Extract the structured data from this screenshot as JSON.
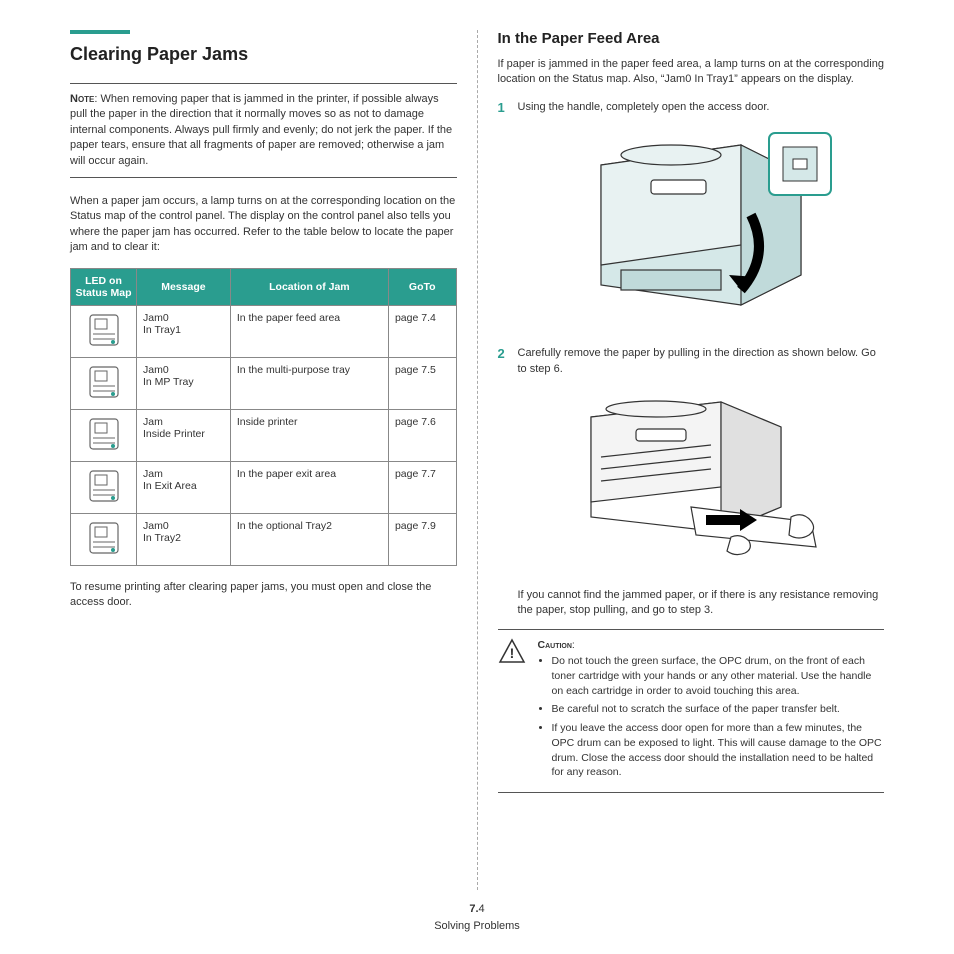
{
  "colors": {
    "accent": "#2a9d8f",
    "text": "#333333",
    "border": "#555555",
    "table_border": "#888888",
    "illustration_fill": "#d5e8e8",
    "illustration_stroke": "#333333"
  },
  "left": {
    "title": "Clearing Paper Jams",
    "note_label": "Note",
    "note_text": ": When removing paper that is jammed in the printer, if possible always pull the paper in the direction that it normally moves so as not to damage internal components. Always pull firmly and evenly; do not jerk the paper. If the paper tears, ensure that all fragments of paper are removed; otherwise a jam will occur again.",
    "intro": "When a paper jam occurs, a lamp turns on at the corresponding location on the Status map of the control panel. The display on the control panel also tells you where the paper jam has occurred. Refer to the table below to locate the paper jam and to clear it:",
    "table": {
      "headers": [
        "LED on Status Map",
        "Message",
        "Location of Jam",
        "GoTo"
      ],
      "col_widths": [
        "66px",
        "auto",
        "auto",
        "60px"
      ],
      "rows": [
        {
          "message": "Jam0 In Tray1",
          "location": "In the paper feed area",
          "goto": "page 7.4"
        },
        {
          "message": "Jam0 In MP Tray",
          "location": "In the multi-purpose tray",
          "goto": "page 7.5"
        },
        {
          "message": "Jam Inside Printer",
          "location": "Inside printer",
          "goto": "page 7.6"
        },
        {
          "message": "Jam In Exit Area",
          "location": "In the paper exit area",
          "goto": "page 7.7"
        },
        {
          "message": "Jam0 In Tray2",
          "location": "In the optional Tray2",
          "goto": "page 7.9"
        }
      ]
    },
    "outro": "To resume printing after clearing paper jams, you must open and close the access door."
  },
  "right": {
    "title": "In the Paper Feed Area",
    "intro": "If paper is jammed in the paper feed area, a lamp turns on at the corresponding location on the Status map. Also,  “Jam0 In Tray1” appears on the display.",
    "steps": [
      {
        "num": "1",
        "text": "Using the handle, completely open the access door."
      },
      {
        "num": "2",
        "text": "Carefully remove the paper by pulling in the direction as shown below. Go to step 6."
      }
    ],
    "step2_note": "If you cannot find the jammed paper, or if there is any resistance removing the paper, stop pulling, and go to step 3.",
    "caution_label": "Caution",
    "caution_items": [
      "Do not touch the green surface, the OPC drum, on the front of each toner cartridge with your hands or any other material. Use the handle on each cartridge in order to avoid touching this area.",
      "Be careful not to scratch the surface of the paper transfer belt.",
      "If you leave the access door open for more than a few minutes, the OPC drum can be exposed to light. This will cause damage to the OPC drum. Close the access door should the installation need to be halted for any reason."
    ]
  },
  "footer": {
    "page_chapter": "7.",
    "page_num": "4",
    "section": "Solving Problems"
  }
}
